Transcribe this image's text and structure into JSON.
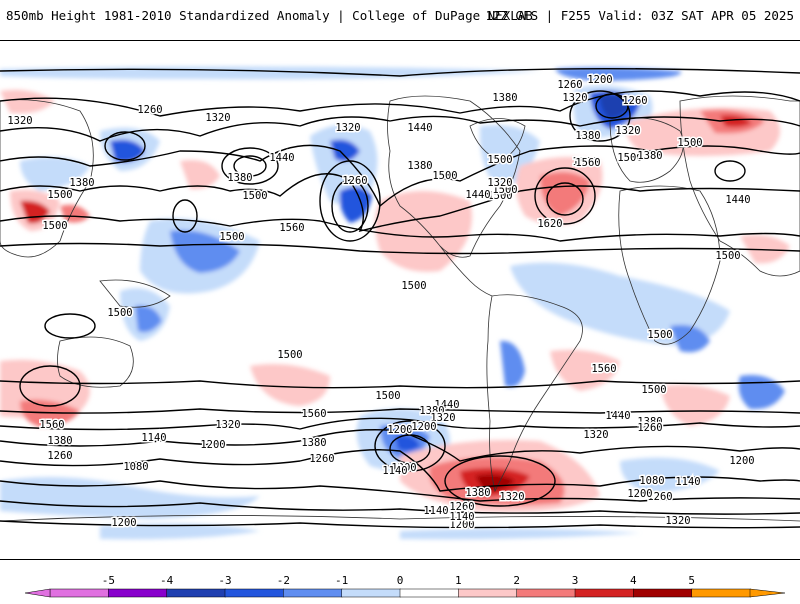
{
  "header": {
    "title_left": "850mb Height 1981-2010 Standardized Anomaly | College of DuPage NEXLAB",
    "title_right": "12Z GFS | F255 Valid: 03Z SAT APR 05 2025"
  },
  "map": {
    "contour_labels": [
      "1260",
      "1320",
      "1320",
      "1380",
      "1440",
      "1380",
      "1500",
      "1560",
      "1500",
      "1500",
      "1260",
      "1320",
      "1380",
      "1440",
      "1500",
      "1560",
      "1500",
      "1500",
      "1500",
      "1320",
      "1380",
      "1260",
      "1500",
      "1440",
      "1320",
      "1380",
      "1560",
      "1620",
      "1200",
      "1260",
      "1320",
      "1380",
      "1500",
      "1440",
      "1500",
      "1500",
      "1500",
      "1500",
      "1500",
      "1560",
      "1380",
      "1260",
      "1140",
      "1080",
      "1200",
      "1320",
      "1380",
      "1200",
      "1200",
      "1140",
      "1500",
      "1440",
      "1380",
      "1320",
      "1200",
      "1260",
      "1140",
      "1500",
      "1560",
      "1380",
      "1320",
      "1260",
      "1200",
      "1140",
      "1200",
      "1500",
      "1440",
      "1380",
      "1260",
      "1200",
      "1080",
      "1140",
      "1260",
      "1200",
      "1320",
      "1320",
      "1560",
      "1500"
    ]
  },
  "colorbar": {
    "tick_labels": [
      "-5",
      "-4",
      "-3",
      "-2",
      "-1",
      "0",
      "1",
      "2",
      "3",
      "4",
      "5"
    ],
    "colors": [
      "#e070e0",
      "#8800cc",
      "#1f3fb0",
      "#2255dd",
      "#5f8df0",
      "#c4dcfa",
      "#ffffff",
      "#fdc8c8",
      "#f37a7a",
      "#d42222",
      "#a00000",
      "#ff9900"
    ]
  }
}
